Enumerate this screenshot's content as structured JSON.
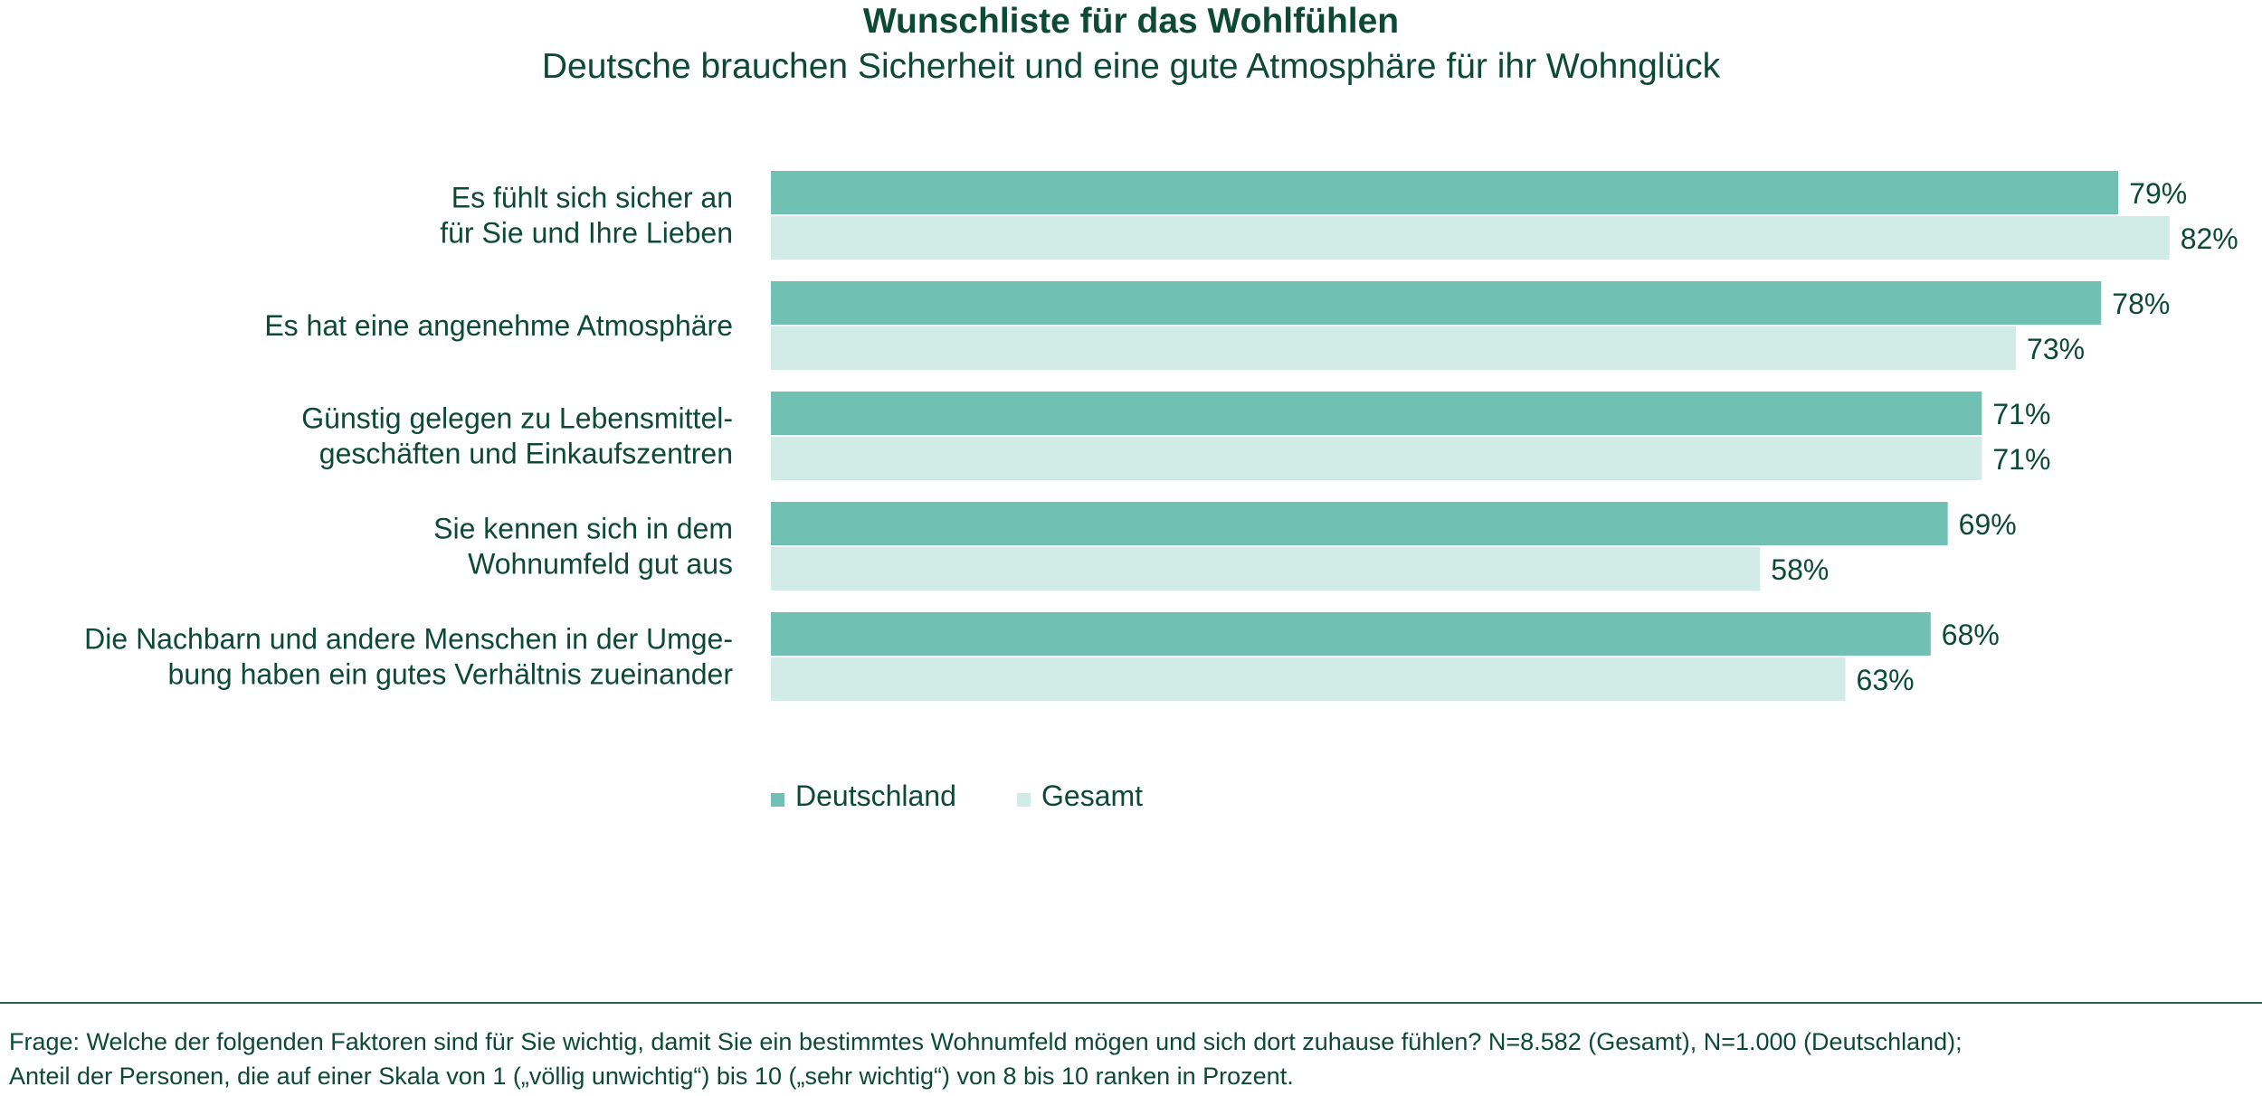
{
  "colors": {
    "deutschland": "#70c1b3",
    "gesamt": "#d1ebe6",
    "text": "#0d4a36"
  },
  "chart_data": {
    "type": "bar",
    "orientation": "horizontal",
    "title": "Wunschliste für das Wohlfühlen",
    "subtitle": "Deutsche brauchen Sicherheit und eine gute Atmosphäre für ihr Wohnglück",
    "categories": [
      [
        "Es fühlt sich sicher an",
        "für Sie und Ihre Lieben"
      ],
      [
        "Es hat eine angenehme Atmosphäre"
      ],
      [
        "Günstig gelegen zu Lebensmittel-",
        "geschäften und Einkaufszentren"
      ],
      [
        "Sie kennen sich in dem",
        "Wohnumfeld gut aus"
      ],
      [
        "Die Nachbarn und andere Menschen in der Umge-",
        "bung haben ein gutes Verhältnis zueinander"
      ]
    ],
    "series": [
      {
        "name": "Deutschland",
        "values": [
          79,
          78,
          71,
          69,
          68
        ],
        "labels": [
          "79%",
          "78%",
          "71%",
          "69%",
          "68%"
        ]
      },
      {
        "name": "Gesamt",
        "values": [
          82,
          73,
          71,
          58,
          63
        ],
        "labels": [
          "82%",
          "73%",
          "71%",
          "58%",
          "63%"
        ]
      }
    ],
    "xlim": [
      0,
      100
    ],
    "unit": "%",
    "grid": false,
    "legend_position": "bottom"
  },
  "footnote": {
    "line1": "Frage: Welche der folgenden Faktoren sind für Sie wichtig, damit Sie ein bestimmtes Wohnumfeld mögen und sich dort zuhause fühlen? N=8.582 (Gesamt), N=1.000 (Deutschland);",
    "line2": "Anteil der Personen, die auf einer Skala von 1 („völlig unwichtig“) bis 10 („sehr wichtig“) von 8 bis 10 ranken in Prozent."
  }
}
